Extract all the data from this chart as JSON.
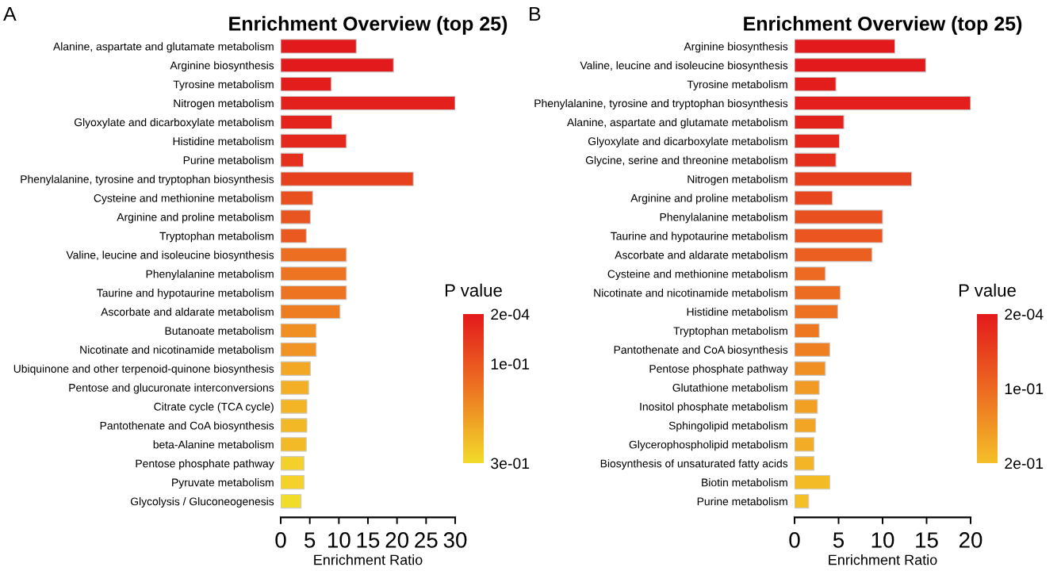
{
  "chart_data": [
    {
      "type": "bar",
      "orientation": "horizontal",
      "title": "Enrichment Overview (top 25)",
      "xlabel": "Enrichment Ratio",
      "clabel": "P value",
      "annotations": [
        "A"
      ],
      "categories": [
        "Alanine, aspartate and glutamate metabolism",
        "Arginine biosynthesis",
        "Tyrosine metabolism",
        "Nitrogen metabolism",
        "Glyoxylate and dicarboxylate metabolism",
        "Histidine metabolism",
        "Purine metabolism",
        "Phenylalanine, tyrosine and tryptophan biosynthesis",
        "Cysteine and methionine metabolism",
        "Arginine and proline metabolism",
        "Tryptophan metabolism",
        "Valine, leucine and isoleucine biosynthesis",
        "Phenylalanine metabolism",
        "Taurine and hypotaurine metabolism",
        "Ascorbate and aldarate metabolism",
        "Butanoate metabolism",
        "Nicotinate and nicotinamide metabolism",
        "Ubiquinone and other terpenoid-quinone biosynthesis",
        "Pentose and glucuronate interconversions",
        "Citrate cycle (TCA cycle)",
        "Pantothenate and CoA biosynthesis",
        "beta-Alanine metabolism",
        "Pentose phosphate pathway",
        "Pyruvate metabolism",
        "Glycolysis / Gluconeogenesis"
      ],
      "values": [
        13.0,
        19.4,
        8.7,
        30,
        8.8,
        11.3,
        3.9,
        22.8,
        5.5,
        5.1,
        4.4,
        11.3,
        11.3,
        11.3,
        10.2,
        6.1,
        6.1,
        5.1,
        4.8,
        4.5,
        4.5,
        4.4,
        4.0,
        4.0,
        3.5
      ],
      "colors": [
        "#e31a1c",
        "#e31a1c",
        "#e31d1c",
        "#e4201c",
        "#e4231c",
        "#e5281d",
        "#e5301d",
        "#e6401e",
        "#e8501f",
        "#e95520",
        "#ea5a20",
        "#ec6e21",
        "#ed7522",
        "#ed7522",
        "#ee7d22",
        "#f09023",
        "#f09524",
        "#f2a825",
        "#f3b026",
        "#f3b526",
        "#f3b826",
        "#f3ba27",
        "#f4d02a",
        "#f4d22a",
        "#f2dc2a"
      ],
      "xlim": [
        0,
        30
      ],
      "xticks": [
        0,
        5,
        10,
        15,
        20,
        25,
        30
      ],
      "clim": [
        0.3,
        0.0002
      ],
      "cticks": [
        {
          "value": 0.0002,
          "label": "2e-04"
        },
        {
          "value": 0.1,
          "label": "1e-01"
        },
        {
          "value": 0.3,
          "label": "3e-01"
        }
      ]
    },
    {
      "type": "bar",
      "orientation": "horizontal",
      "title": "Enrichment Overview (top 25)",
      "xlabel": "Enrichment Ratio",
      "clabel": "P value",
      "annotations": [
        "B"
      ],
      "categories": [
        "Arginine biosynthesis",
        "Valine, leucine and isoleucine biosynthesis",
        "Tyrosine metabolism",
        "Phenylalanine, tyrosine and tryptophan biosynthesis",
        "Alanine, aspartate and glutamate metabolism",
        "Glyoxylate and dicarboxylate metabolism",
        "Glycine, serine and threonine metabolism",
        "Nitrogen metabolism",
        "Arginine and proline metabolism",
        "Phenylalanine metabolism",
        "Taurine and hypotaurine metabolism",
        "Ascorbate and aldarate metabolism",
        "Cysteine and methionine metabolism",
        "Nicotinate and nicotinamide metabolism",
        "Histidine metabolism",
        "Tryptophan metabolism",
        "Pantothenate and CoA biosynthesis",
        "Pentose phosphate pathway",
        "Glutathione metabolism",
        "Inositol phosphate metabolism",
        "Sphingolipid metabolism",
        "Glycerophospholipid metabolism",
        "Biosynthesis of unsaturated fatty acids",
        "Biotin metabolism",
        "Purine metabolism"
      ],
      "values": [
        11.4,
        14.9,
        4.7,
        20,
        5.6,
        5.1,
        4.7,
        13.3,
        4.3,
        10.0,
        10.0,
        8.8,
        3.5,
        5.2,
        4.9,
        2.8,
        4.0,
        3.5,
        2.8,
        2.6,
        2.4,
        2.2,
        2.2,
        4.0,
        1.6
      ],
      "colors": [
        "#e31a1c",
        "#e31a1c",
        "#e31c1c",
        "#e41e1c",
        "#e4221c",
        "#e5281d",
        "#e5301d",
        "#e6401e",
        "#e8461e",
        "#e9501f",
        "#ea5520",
        "#eb6020",
        "#ec6a21",
        "#ec6c21",
        "#ed7222",
        "#ee7822",
        "#ef8022",
        "#f09023",
        "#f19a24",
        "#f2a024",
        "#f2a525",
        "#f3ac25",
        "#f3b526",
        "#f3bc27",
        "#f4c028"
      ],
      "xlim": [
        0,
        20
      ],
      "xticks": [
        0,
        5,
        10,
        15,
        20
      ],
      "clim": [
        0.2,
        0.0002
      ],
      "cticks": [
        {
          "value": 0.0002,
          "label": "2e-04"
        },
        {
          "value": 0.1,
          "label": "1e-01"
        },
        {
          "value": 0.2,
          "label": "2e-01"
        }
      ]
    }
  ]
}
